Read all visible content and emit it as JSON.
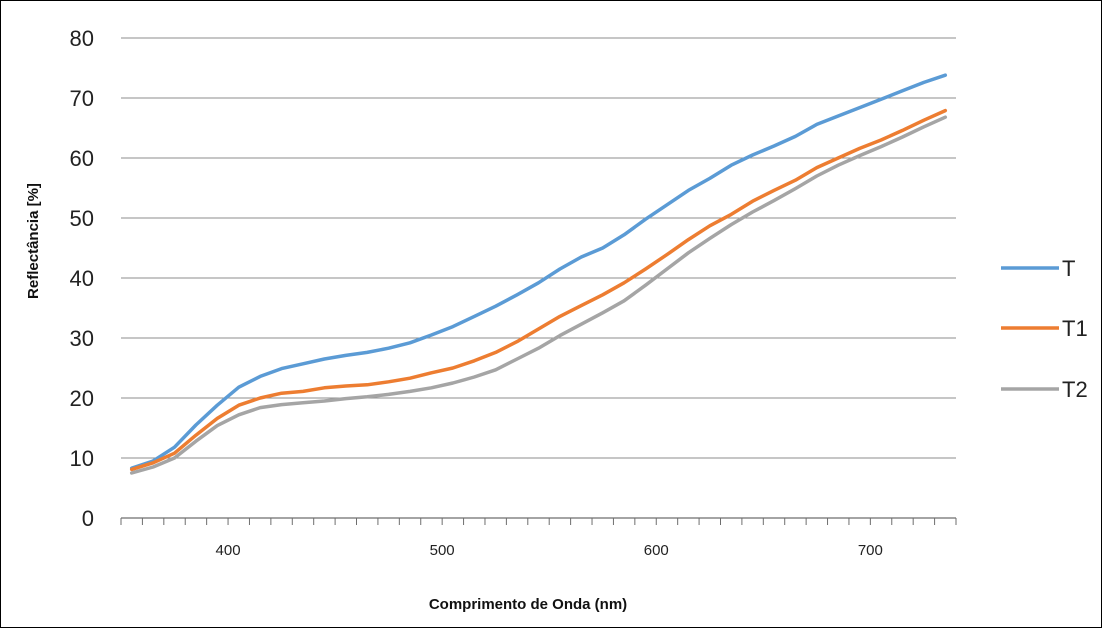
{
  "chart_data": {
    "type": "line",
    "title": "",
    "xlabel": "Comprimento de Onda (nm)",
    "ylabel": "Reflectância [%]",
    "xlim": [
      350,
      740
    ],
    "ylim": [
      0,
      80
    ],
    "yticks": [
      0,
      10,
      20,
      30,
      40,
      50,
      60,
      70,
      80
    ],
    "xtick_labels": [
      400,
      500,
      600,
      700
    ],
    "grid": "horizontal",
    "legend_position": "right",
    "x": [
      355,
      365,
      375,
      385,
      395,
      405,
      415,
      425,
      435,
      445,
      455,
      465,
      475,
      485,
      495,
      505,
      515,
      525,
      535,
      545,
      555,
      565,
      575,
      585,
      595,
      605,
      615,
      625,
      635,
      645,
      655,
      665,
      675,
      685,
      695,
      705,
      715,
      725,
      735
    ],
    "series": [
      {
        "name": "T",
        "color": "#5b9bd5",
        "values": [
          8.3,
          9.5,
          11.8,
          15.5,
          18.8,
          21.8,
          23.6,
          24.9,
          25.7,
          26.5,
          27.1,
          27.6,
          28.3,
          29.2,
          30.5,
          31.9,
          33.6,
          35.3,
          37.2,
          39.2,
          41.5,
          43.5,
          45.0,
          47.2,
          49.8,
          52.2,
          54.6,
          56.6,
          58.8,
          60.5,
          62.0,
          63.6,
          65.6,
          67.0,
          68.4,
          69.8,
          71.2,
          72.6,
          73.8
        ]
      },
      {
        "name": "T1",
        "color": "#ed7d31",
        "values": [
          8.1,
          9.2,
          10.8,
          13.8,
          16.6,
          18.8,
          20.0,
          20.8,
          21.1,
          21.7,
          22.0,
          22.2,
          22.7,
          23.3,
          24.2,
          25.0,
          26.2,
          27.6,
          29.4,
          31.5,
          33.6,
          35.4,
          37.2,
          39.2,
          41.5,
          43.9,
          46.4,
          48.7,
          50.6,
          52.8,
          54.6,
          56.3,
          58.4,
          60.0,
          61.6,
          63.0,
          64.6,
          66.3,
          67.9
        ]
      },
      {
        "name": "T2",
        "color": "#a5a5a5",
        "values": [
          7.5,
          8.5,
          10.0,
          12.8,
          15.4,
          17.2,
          18.4,
          18.9,
          19.2,
          19.5,
          19.9,
          20.2,
          20.6,
          21.1,
          21.7,
          22.5,
          23.5,
          24.7,
          26.5,
          28.3,
          30.4,
          32.3,
          34.2,
          36.2,
          38.8,
          41.5,
          44.2,
          46.6,
          48.9,
          51.0,
          52.9,
          54.9,
          57.0,
          58.8,
          60.4,
          61.9,
          63.5,
          65.2,
          66.8
        ]
      }
    ]
  }
}
